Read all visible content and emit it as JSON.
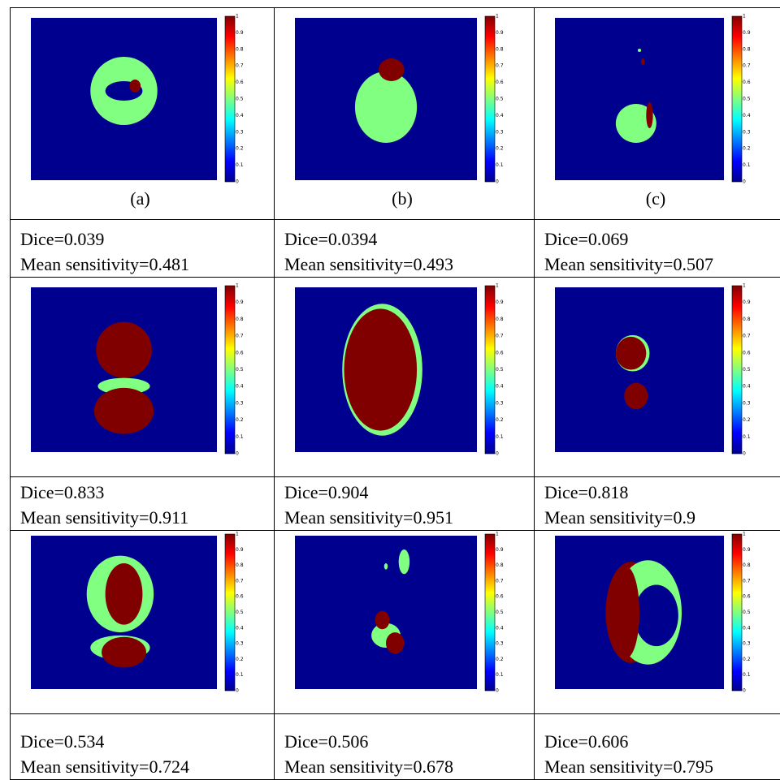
{
  "panels": [
    {
      "caption": "(a)",
      "dice": "Dice=0.039",
      "sensitivity": "Mean sensitivity=0.481"
    },
    {
      "caption": "(b)",
      "dice": "Dice=0.0394",
      "sensitivity": "Mean sensitivity=0.493"
    },
    {
      "caption": "(c)",
      "dice": "Dice=0.069",
      "sensitivity": "Mean sensitivity=0.507"
    },
    {
      "dice": "Dice=0.833",
      "sensitivity": "Mean sensitivity=0.911"
    },
    {
      "dice": "Dice=0.904",
      "sensitivity": "Mean sensitivity=0.951"
    },
    {
      "dice": "Dice=0.818",
      "sensitivity": "Mean sensitivity=0.9"
    },
    {
      "dice": "Dice=0.534",
      "sensitivity": "Mean sensitivity=0.724"
    },
    {
      "dice": "Dice=0.506",
      "sensitivity": "Mean sensitivity=0.678"
    },
    {
      "dice": "Dice=0.606",
      "sensitivity": "Mean sensitivity=0.795"
    }
  ],
  "colorbar_ticks": [
    "0",
    "0.1",
    "0.2",
    "0.3",
    "0.4",
    "0.5",
    "0.6",
    "0.7",
    "0.8",
    "0.9",
    "1"
  ]
}
